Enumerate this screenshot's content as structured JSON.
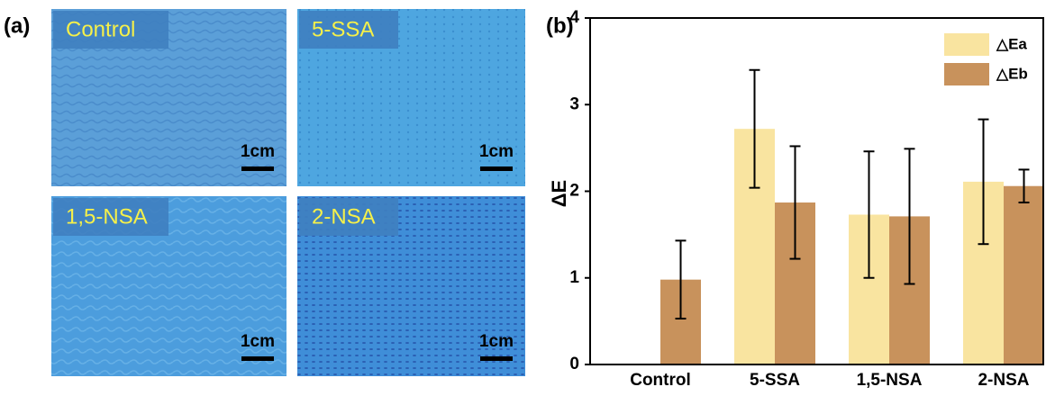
{
  "panel_a": {
    "label": "(a)",
    "images": [
      {
        "title": "Control",
        "scale": "1cm"
      },
      {
        "title": "5-SSA",
        "scale": "1cm"
      },
      {
        "title": "1,5-NSA",
        "scale": "1cm"
      },
      {
        "title": "2-NSA",
        "scale": "1cm"
      }
    ]
  },
  "chart_data": {
    "type": "bar",
    "panel_label": "(b)",
    "ylabel": "ΔE",
    "categories": [
      "Control",
      "5-SSA",
      "1,5-NSA",
      "2-NSA"
    ],
    "series": [
      {
        "name": "△Ea",
        "color": "#f9e4a0",
        "values": [
          null,
          2.72,
          1.73,
          2.11
        ],
        "errors": [
          null,
          0.68,
          0.73,
          0.72
        ]
      },
      {
        "name": "△Eb",
        "color": "#c8925c",
        "values": [
          0.98,
          1.87,
          1.71,
          2.06
        ],
        "errors": [
          0.45,
          0.65,
          0.78,
          0.19
        ]
      }
    ],
    "ylim": [
      0,
      4
    ],
    "yticks": [
      0,
      1,
      2,
      3,
      4
    ],
    "legend": "upper right"
  }
}
